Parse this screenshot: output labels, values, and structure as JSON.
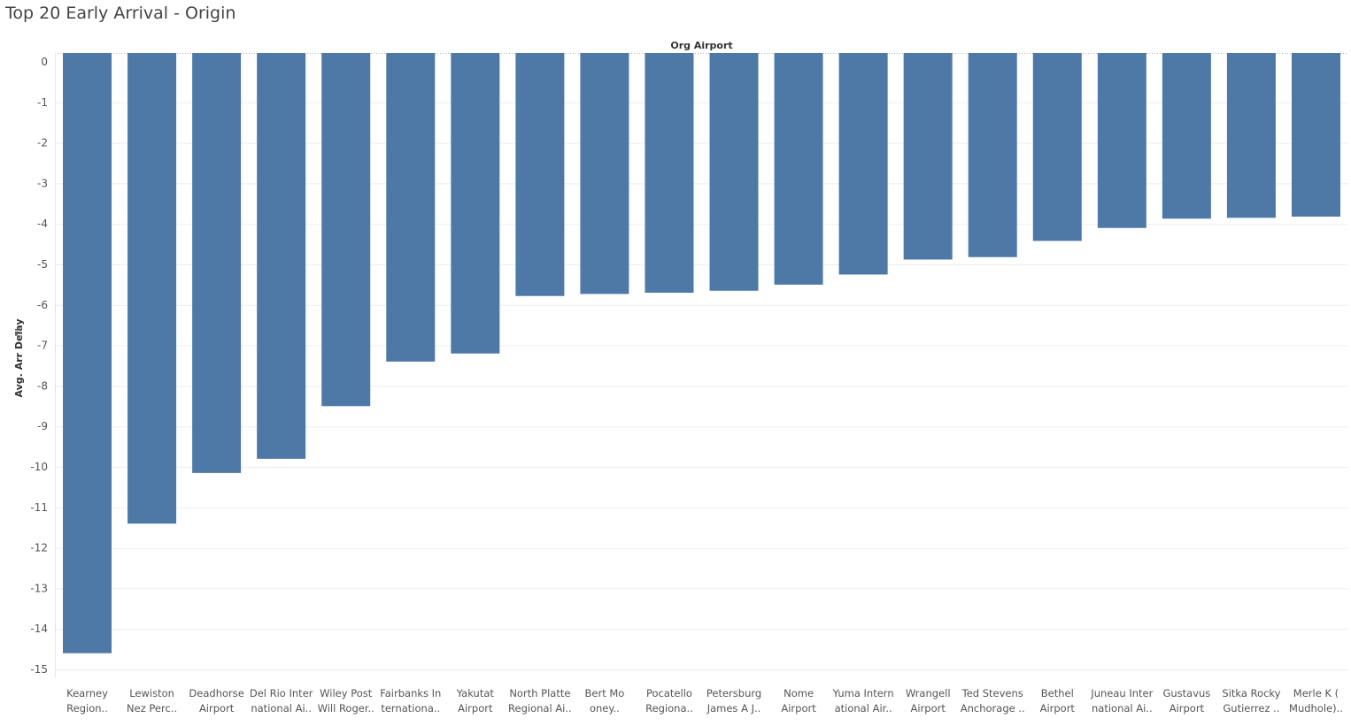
{
  "title": "Top 20 Early Arrival - Origin",
  "chart_data": {
    "type": "bar",
    "column_header": "Org Airport",
    "ylabel": "Avg. Arr Delay",
    "ylim": [
      -15,
      0
    ],
    "yticks": [
      0,
      -1,
      -2,
      -3,
      -4,
      -5,
      -6,
      -7,
      -8,
      -9,
      -10,
      -11,
      -12,
      -13,
      -14,
      -15
    ],
    "grid": true,
    "bar_color": "#4e79a7",
    "categories": [
      [
        "Kearney",
        "Region.."
      ],
      [
        "Lewiston",
        "Nez Perc.."
      ],
      [
        "Deadhorse",
        "Airport"
      ],
      [
        "Del Rio Inter",
        "national Ai.."
      ],
      [
        "Wiley Post",
        "Will Roger.."
      ],
      [
        "Fairbanks In",
        "ternationa.."
      ],
      [
        "Yakutat",
        "Airport"
      ],
      [
        "North Platte",
        "Regional Ai.."
      ],
      [
        "Bert Mo",
        "oney.."
      ],
      [
        "Pocatello",
        "Regiona.."
      ],
      [
        "Petersburg",
        "James A J.."
      ],
      [
        "Nome",
        "Airport"
      ],
      [
        "Yuma Intern",
        "ational Air.."
      ],
      [
        "Wrangell",
        "Airport"
      ],
      [
        "Ted Stevens",
        "Anchorage .."
      ],
      [
        "Bethel",
        "Airport"
      ],
      [
        "Juneau Inter",
        "national Ai.."
      ],
      [
        "Gustavus",
        "Airport"
      ],
      [
        "Sitka Rocky",
        "Gutierrez .."
      ],
      [
        "Merle K (",
        "Mudhole).."
      ]
    ],
    "values": [
      -14.6,
      -11.4,
      -10.15,
      -9.8,
      -8.5,
      -7.4,
      -7.2,
      -5.78,
      -5.73,
      -5.7,
      -5.65,
      -5.5,
      -5.25,
      -4.88,
      -4.82,
      -4.42,
      -4.1,
      -3.87,
      -3.85,
      -3.82
    ]
  }
}
